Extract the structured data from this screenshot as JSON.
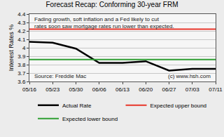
{
  "chart_data": {
    "type": "line",
    "title": "Forecast Recap: Conforming 30-year FRM",
    "annotations": [
      "Fading growth, soft inflation and a Fed likely to cut rates soon saw mortgage rates run lower than expected.",
      "Source: Freddie Mac",
      "(c) www.hsh.com"
    ],
    "y_label": "Interest Rates %",
    "categories": [
      "05/16",
      "05/23",
      "05/30",
      "06/06",
      "06/13",
      "06/20",
      "06/27",
      "07/03",
      "07/11"
    ],
    "series": [
      {
        "name": "Actual Rate",
        "color": "#000000",
        "values": [
          4.07,
          4.06,
          3.99,
          3.82,
          3.82,
          3.84,
          3.73,
          3.75,
          3.75
        ]
      },
      {
        "name": "Expected upper bound",
        "color": "#e8362a",
        "values": [
          4.22,
          4.22,
          4.22,
          4.22,
          4.22,
          4.22,
          4.22,
          4.22,
          4.22
        ]
      },
      {
        "name": "Expected lower bound",
        "color": "#2e9e32",
        "values": [
          3.86,
          3.86,
          3.86,
          3.86,
          3.86,
          3.86,
          3.86,
          3.86,
          3.86
        ]
      }
    ],
    "ylim": [
      3.6,
      4.4
    ],
    "yticks": [
      3.6,
      3.7,
      3.8,
      3.9,
      4,
      4.1,
      4.2,
      4.3,
      4.4
    ],
    "grid": true,
    "legend": "bottom"
  }
}
